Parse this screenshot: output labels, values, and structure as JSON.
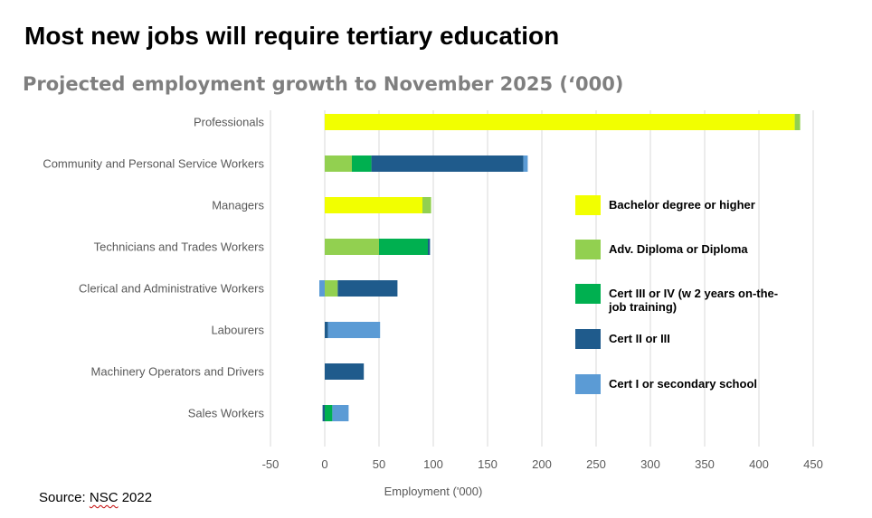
{
  "title": "Most new jobs will require tertiary education",
  "subtitle": "Projected employment growth to November 2025 (‘000)",
  "source": {
    "prefix": "Source: ",
    "org": "NSC",
    "year": " 2022"
  },
  "chart_data": {
    "type": "bar",
    "orientation": "horizontal",
    "stacked": true,
    "xlabel": "Employment ('000)",
    "ylabel": "",
    "xlim": [
      -50,
      450
    ],
    "xticks": [
      -50,
      0,
      50,
      100,
      150,
      200,
      250,
      300,
      350,
      400,
      450
    ],
    "grid": "vertical",
    "legend_position": "right",
    "categories": [
      "Professionals",
      "Community and Personal Service Workers",
      "Managers",
      "Technicians and Trades Workers",
      "Clerical and Administrative Workers",
      "Labourers",
      "Machinery Operators and Drivers",
      "Sales Workers"
    ],
    "series": [
      {
        "name": "Bachelor degree or higher",
        "color": "#f2ff00",
        "values": [
          433,
          0,
          90,
          0,
          0,
          0,
          0,
          0
        ]
      },
      {
        "name": "Adv. Diploma or Diploma",
        "color": "#92d050",
        "values": [
          5,
          25,
          8,
          50,
          12,
          0,
          0,
          0
        ]
      },
      {
        "name": "Cert III or IV (w 2 years on-the-job training)",
        "color": "#00b050",
        "values": [
          0,
          18,
          0,
          45,
          0,
          0,
          0,
          7
        ]
      },
      {
        "name": "Cert II or III",
        "color": "#1f5b8c",
        "values": [
          0,
          140,
          0,
          2,
          55,
          3,
          36,
          -2
        ]
      },
      {
        "name": "Cert I or secondary school",
        "color": "#5b9bd5",
        "values": [
          0,
          4,
          0,
          0,
          -5,
          48,
          0,
          15
        ]
      }
    ]
  }
}
